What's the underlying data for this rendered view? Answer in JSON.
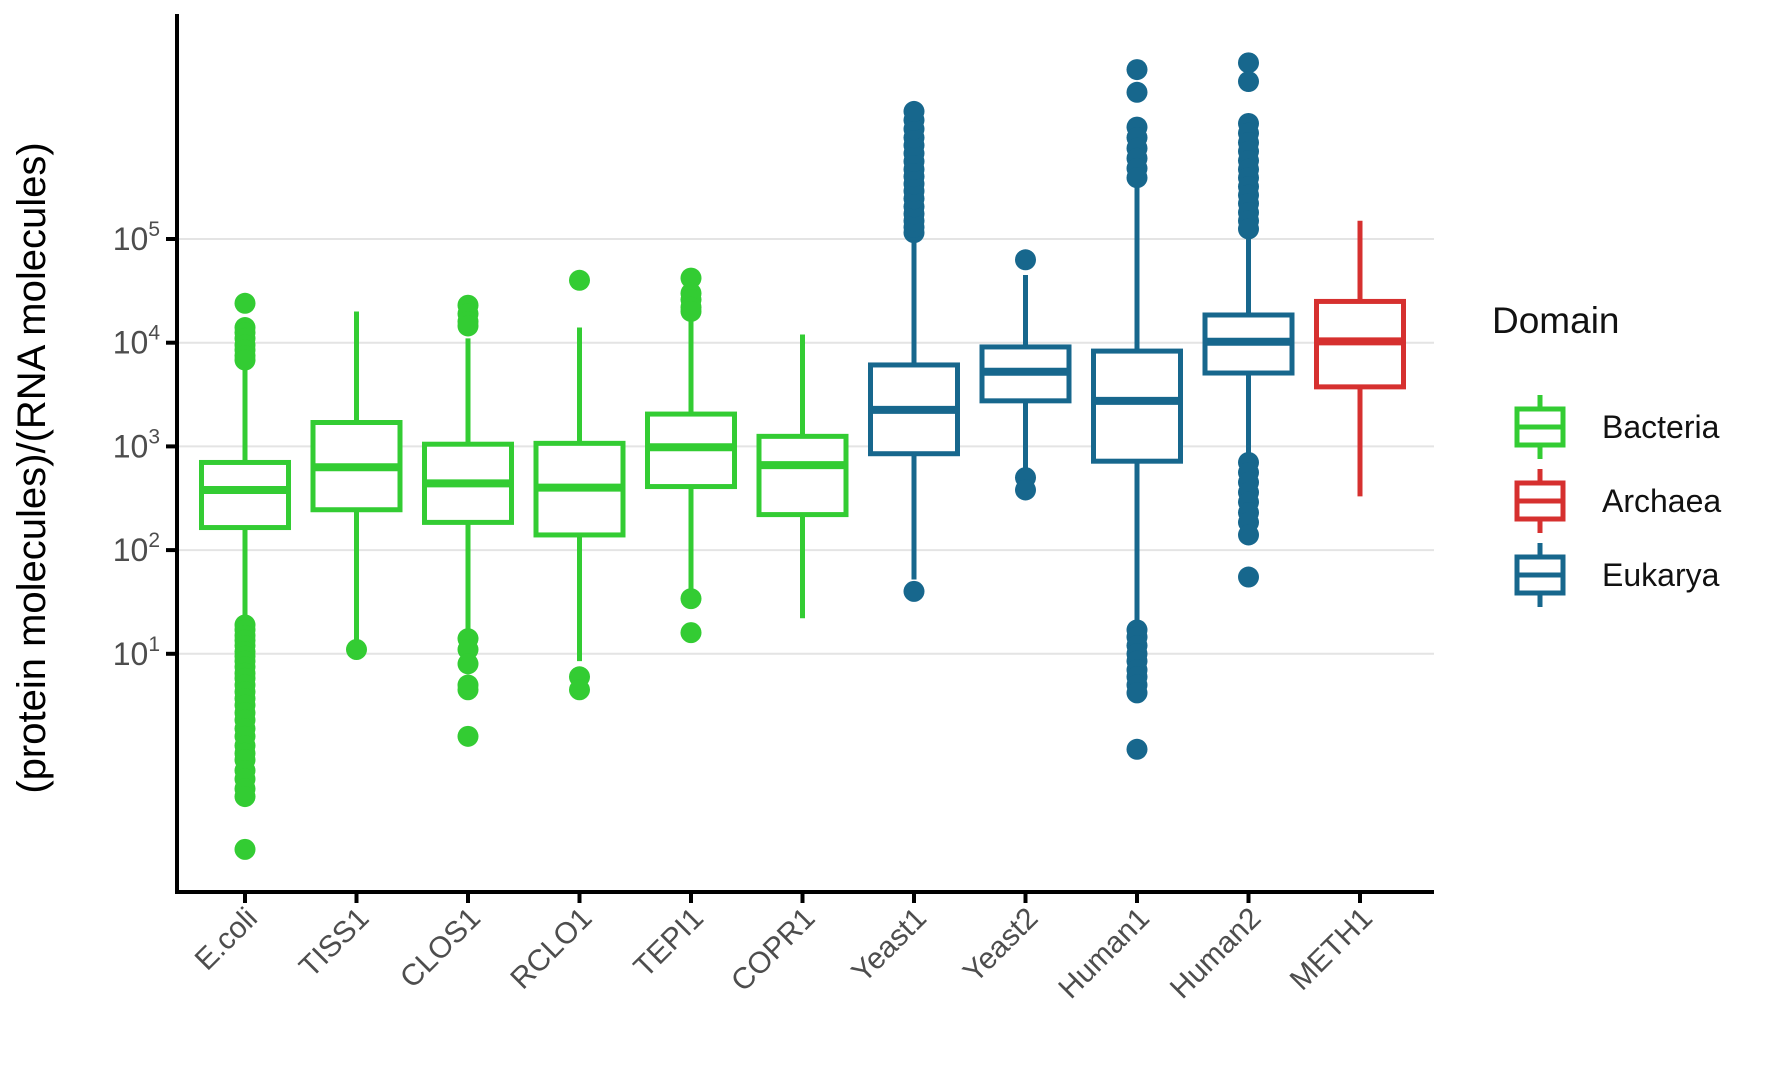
{
  "figure": {
    "background": "#FFFFFF",
    "y_axis_title": "(protein molecules)/(RNA molecules)"
  },
  "legend": {
    "title": "Domain",
    "items": [
      {
        "label": "Bacteria",
        "color": "#33CC33"
      },
      {
        "label": "Archaea",
        "color": "#D6302F"
      },
      {
        "label": "Eukarya",
        "color": "#17678D"
      }
    ]
  },
  "colors": {
    "grid": "#E4E4E4",
    "axis": "#000000",
    "tick_label": "#4D4D4D",
    "box_fill": "#FFFFFF"
  },
  "chart_data": {
    "type": "boxplot",
    "title": "",
    "xlabel": "",
    "ylabel": "(protein molecules)/(RNA molecules)",
    "y_scale": "log10",
    "ylim": [
      0.05,
      12000000
    ],
    "grid": "horizontal-major-only",
    "legend_position": "right",
    "x_tick_label_rotation": 45,
    "y_ticks": [
      {
        "base": "10",
        "exp": "5",
        "value": 100000
      },
      {
        "base": "10",
        "exp": "4",
        "value": 10000
      },
      {
        "base": "10",
        "exp": "3",
        "value": 1000
      },
      {
        "base": "10",
        "exp": "2",
        "value": 100
      },
      {
        "base": "10",
        "exp": "1",
        "value": 10
      }
    ],
    "categories": [
      "E.coli",
      "TISS1",
      "CLOS1",
      "RCLO1",
      "TEPI1",
      "COPR1",
      "Yeast1",
      "Yeast2",
      "Human1",
      "Human2",
      "METH1"
    ],
    "series": [
      {
        "name": "E.coli",
        "domain": "Bacteria",
        "whisker_low": 20,
        "q1": 165,
        "median": 380,
        "q3": 700,
        "whisker_high": 6300,
        "outliers_high": [
          24000,
          14000,
          12500,
          11000,
          9500,
          8500,
          7500,
          6800
        ],
        "outliers_low": [
          19,
          17,
          15,
          13.5,
          12,
          10.5,
          9.5,
          8.5,
          7.5,
          6.5,
          5.8,
          5,
          4.3,
          3.7,
          3.2,
          2.7,
          2.3,
          1.9,
          1.6,
          1.3,
          1.1,
          0.95,
          0.75,
          0.62,
          0.5,
          0.42,
          0.13
        ]
      },
      {
        "name": "TISS1",
        "domain": "Bacteria",
        "whisker_low": 13,
        "q1": 245,
        "median": 630,
        "q3": 1700,
        "whisker_high": 20000,
        "outliers_high": [],
        "outliers_low": [
          11
        ]
      },
      {
        "name": "CLOS1",
        "domain": "Bacteria",
        "whisker_low": 16,
        "q1": 185,
        "median": 440,
        "q3": 1050,
        "whisker_high": 11000,
        "outliers_high": [
          23000,
          19000,
          16000,
          14500
        ],
        "outliers_low": [
          14,
          11,
          8,
          5,
          4.5,
          1.6
        ]
      },
      {
        "name": "RCLO1",
        "domain": "Bacteria",
        "whisker_low": 8.5,
        "q1": 140,
        "median": 400,
        "q3": 1070,
        "whisker_high": 14000,
        "outliers_high": [
          40000
        ],
        "outliers_low": [
          6,
          4.5
        ]
      },
      {
        "name": "TEPI1",
        "domain": "Bacteria",
        "whisker_low": 38,
        "q1": 410,
        "median": 980,
        "q3": 2050,
        "whisker_high": 18000,
        "outliers_high": [
          42000,
          30000,
          26000,
          22000,
          20000
        ],
        "outliers_low": [
          34,
          16
        ]
      },
      {
        "name": "COPR1",
        "domain": "Bacteria",
        "whisker_low": 22,
        "q1": 220,
        "median": 660,
        "q3": 1250,
        "whisker_high": 12000,
        "outliers_high": [],
        "outliers_low": []
      },
      {
        "name": "Yeast1",
        "domain": "Eukarya",
        "whisker_low": 52,
        "q1": 850,
        "median": 2250,
        "q3": 6100,
        "whisker_high": 105000,
        "outliers_high": [
          115000,
          130000,
          150000,
          175000,
          205000,
          245000,
          290000,
          340000,
          400000,
          470000,
          560000,
          670000,
          800000,
          950000,
          1150000,
          1400000,
          1700000
        ],
        "outliers_low": [
          40
        ]
      },
      {
        "name": "Yeast2",
        "domain": "Eukarya",
        "whisker_low": 550,
        "q1": 2750,
        "median": 5250,
        "q3": 9100,
        "whisker_high": 45000,
        "outliers_high": [
          63000
        ],
        "outliers_low": [
          500,
          380
        ]
      },
      {
        "name": "Human1",
        "domain": "Eukarya",
        "whisker_low": 18,
        "q1": 720,
        "median": 2750,
        "q3": 8300,
        "whisker_high": 320000,
        "outliers_high": [
          4300000,
          2600000,
          1200000,
          950000,
          750000,
          600000,
          480000,
          390000
        ],
        "outliers_low": [
          17,
          14.5,
          12,
          10,
          8.5,
          7,
          6,
          5,
          4.2,
          1.2
        ]
      },
      {
        "name": "Human2",
        "domain": "Eukarya",
        "whisker_low": 800,
        "q1": 5100,
        "median": 10200,
        "q3": 18500,
        "whisker_high": 115000,
        "outliers_high": [
          5000000,
          3300000,
          1300000,
          1050000,
          850000,
          700000,
          570000,
          470000,
          390000,
          320000,
          265000,
          220000,
          180000,
          150000,
          125000
        ],
        "outliers_low": [
          700,
          560,
          450,
          360,
          290,
          230,
          185,
          140,
          55
        ]
      },
      {
        "name": "METH1",
        "domain": "Archaea",
        "whisker_low": 330,
        "q1": 3750,
        "median": 10300,
        "q3": 25000,
        "whisker_high": 150000,
        "outliers_high": [],
        "outliers_low": []
      }
    ]
  }
}
